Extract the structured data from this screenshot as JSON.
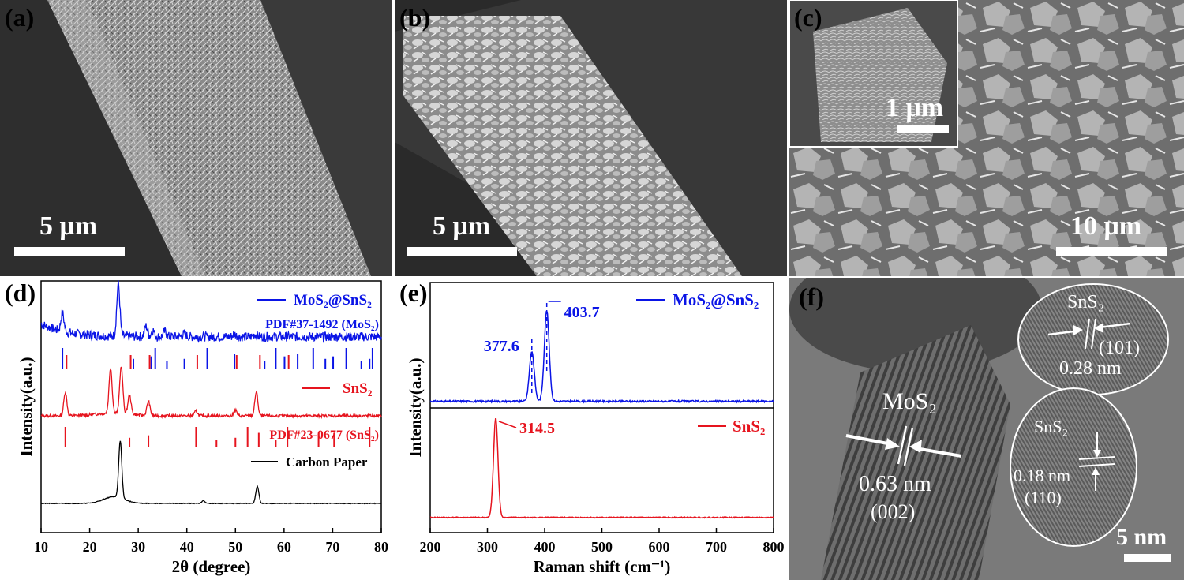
{
  "panels": {
    "a": {
      "label": "(a)",
      "scale": "5 μm"
    },
    "b": {
      "label": "(b)",
      "scale": "5 μm"
    },
    "c": {
      "label": "(c)",
      "scale": "10 μm",
      "inset_scale": "1 μm"
    },
    "d": {
      "label": "(d)"
    },
    "e": {
      "label": "(e)"
    },
    "f": {
      "label": "(f)",
      "scale": "5 nm",
      "annotations": {
        "mos2": "MoS₂",
        "mos2_spacing": "0.63 nm",
        "mos2_plane": "(002)",
        "sns2_top": "SnS₂",
        "sns2_top_plane": "(101)",
        "sns2_top_spacing": "0.28 nm",
        "sns2_bottom": "SnS₂",
        "sns2_bottom_spacing": "0.18 nm",
        "sns2_bottom_plane": "(110)"
      }
    }
  },
  "colors": {
    "blue": "#0a14e6",
    "red": "#e6141e",
    "black": "#000000"
  },
  "chart_data": [
    {
      "type": "line",
      "panel": "d",
      "xlabel": "2θ (degree)",
      "ylabel": "Intensity(a.u.)",
      "xlim": [
        10,
        80
      ],
      "xticks": [
        10,
        20,
        30,
        40,
        50,
        60,
        70,
        80
      ],
      "series": [
        {
          "name": "MoS₂@SnS₂",
          "color": "#0a14e6",
          "peaks": [
            [
              14.4,
              0.35
            ],
            [
              25.9,
              1.0
            ],
            [
              31.6,
              0.2
            ],
            [
              33.0,
              0.12
            ],
            [
              35.5,
              0.1
            ],
            [
              39.5,
              0.06
            ],
            [
              49.8,
              0.05
            ],
            [
              54.0,
              0.05
            ]
          ]
        },
        {
          "name": "SnS₂",
          "color": "#e6141e",
          "peaks": [
            [
              15.0,
              0.5
            ],
            [
              24.3,
              0.95
            ],
            [
              26.5,
              1.0
            ],
            [
              28.2,
              0.4
            ],
            [
              32.1,
              0.3
            ],
            [
              41.9,
              0.1
            ],
            [
              50.0,
              0.12
            ],
            [
              54.3,
              0.5
            ]
          ]
        },
        {
          "name": "Carbon Paper",
          "color": "#000000",
          "peaks": [
            [
              26.3,
              1.0
            ],
            [
              43.4,
              0.05
            ],
            [
              54.5,
              0.3
            ]
          ]
        }
      ],
      "references": [
        {
          "name": "PDF#37-1492 (MoS₂)",
          "color": "#0a14e6",
          "lines": [
            14.4,
            29.0,
            32.7,
            33.5,
            35.9,
            39.5,
            44.2,
            49.8,
            56.0,
            58.3,
            60.1,
            62.8,
            66.0,
            68.5,
            70.1,
            72.8,
            75.9,
            77.6,
            78.2
          ]
        },
        {
          "name": "PDF#23-0677 (SnS₂)",
          "color": "#e6141e",
          "lines": [
            15.0,
            28.2,
            32.1,
            41.9,
            46.1,
            50.0,
            52.5,
            54.8,
            58.3,
            60.7,
            67.1,
            70.3,
            77.6
          ]
        }
      ]
    },
    {
      "type": "line",
      "panel": "e",
      "xlabel": "Raman shift (cm⁻¹)",
      "ylabel": "Intensity(a.u.)",
      "xlim": [
        200,
        800
      ],
      "xticks": [
        200,
        300,
        400,
        500,
        600,
        700,
        800
      ],
      "series": [
        {
          "name": "MoS₂@SnS₂",
          "color": "#0a14e6",
          "peaks": [
            [
              377.6,
              0.55
            ],
            [
              403.7,
              1.0
            ]
          ],
          "annotations": [
            "377.6",
            "403.7"
          ]
        },
        {
          "name": "SnS₂",
          "color": "#e6141e",
          "peaks": [
            [
              314.5,
              1.0
            ]
          ],
          "annotations": [
            "314.5"
          ]
        }
      ]
    }
  ]
}
